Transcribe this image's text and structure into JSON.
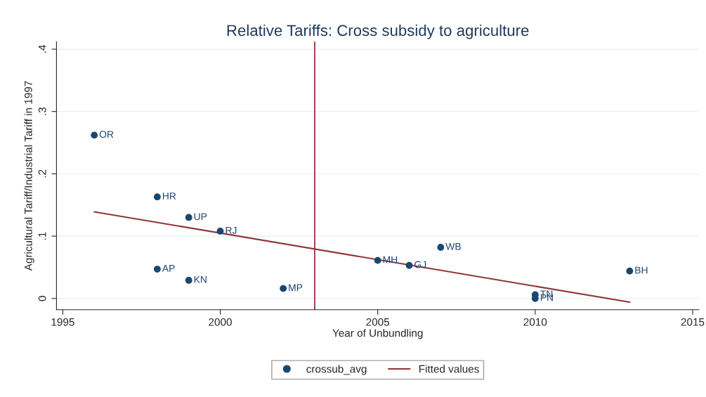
{
  "chart_data": {
    "type": "scatter",
    "title": "Relative Tariffs: Cross subsidy to agriculture",
    "xlabel": "Year of Unbundling",
    "ylabel": "Agricultural Tariff/Industrial Tariff in 1997",
    "xlim": [
      1994.8,
      2015.2
    ],
    "xticks": [
      1995,
      2000,
      2005,
      2010,
      2015
    ],
    "ylim": [
      -0.018,
      0.412
    ],
    "yticks": [
      {
        "value": 0,
        "label": "0"
      },
      {
        "value": 0.1,
        "label": ".1"
      },
      {
        "value": 0.2,
        "label": ".2"
      },
      {
        "value": 0.3,
        "label": ".3"
      },
      {
        "value": 0.4,
        "label": ".4"
      }
    ],
    "grid": "y",
    "legend": "bottom",
    "series": [
      {
        "name": "crossub_avg",
        "marker": "circle",
        "color": "#1a476f",
        "x": [
          1996,
          1998,
          1999,
          2000,
          1998,
          1999,
          2002,
          2005,
          2006,
          2007,
          2010,
          2010,
          2013
        ],
        "values": [
          0.262,
          0.163,
          0.13,
          0.108,
          0.047,
          0.029,
          0.016,
          0.061,
          0.053,
          0.082,
          0.006,
          0.0,
          0.044
        ]
      },
      {
        "name": "Fitted values",
        "type": "line",
        "color": "#90353b",
        "x": [
          1996,
          2013
        ],
        "values": [
          0.139,
          -0.006
        ]
      }
    ],
    "ref_lines": [
      {
        "axis": "x",
        "value": 2003,
        "color": "#90353b"
      }
    ],
    "annotations": [
      {
        "text": "OR",
        "x": 1996,
        "y": 0.262
      },
      {
        "text": "HR",
        "x": 1998,
        "y": 0.163
      },
      {
        "text": "UP",
        "x": 1999,
        "y": 0.13
      },
      {
        "text": "RJ",
        "x": 2000,
        "y": 0.108
      },
      {
        "text": "AP",
        "x": 1998,
        "y": 0.047
      },
      {
        "text": "KN",
        "x": 1999,
        "y": 0.029
      },
      {
        "text": "MP",
        "x": 2002,
        "y": 0.016
      },
      {
        "text": "MH",
        "x": 2005,
        "y": 0.061
      },
      {
        "text": "GJ",
        "x": 2006,
        "y": 0.053
      },
      {
        "text": "WB",
        "x": 2007,
        "y": 0.082
      },
      {
        "text": "TN",
        "x": 2010,
        "y": 0.006
      },
      {
        "text": "PN",
        "x": 2010,
        "y": 0.0
      },
      {
        "text": "BH",
        "x": 2013,
        "y": 0.044
      }
    ]
  }
}
